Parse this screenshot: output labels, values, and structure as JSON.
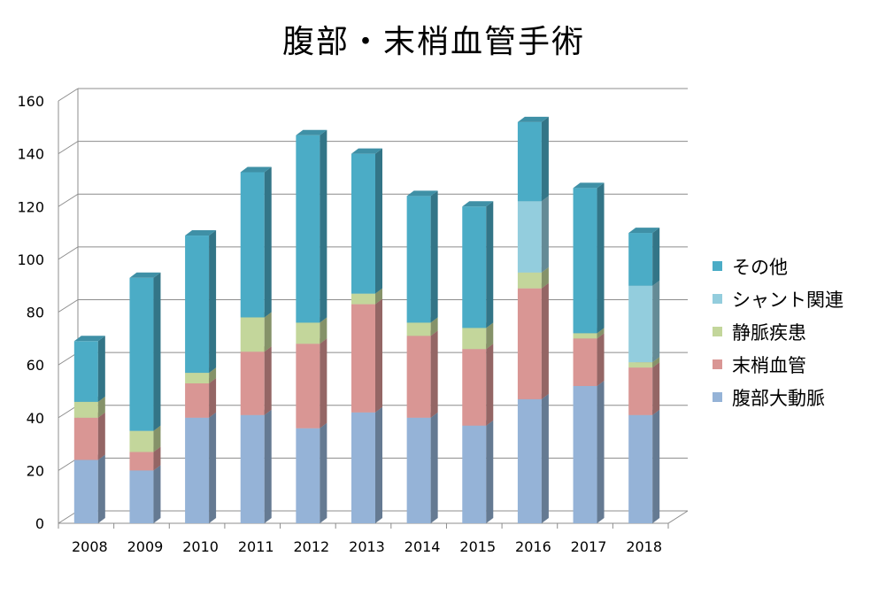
{
  "chart_data": {
    "type": "bar",
    "stacked": true,
    "three_d": true,
    "title": "腹部・末梢血管手術",
    "xlabel": "",
    "ylabel": "",
    "categories": [
      "2008",
      "2009",
      "2010",
      "2011",
      "2012",
      "2013",
      "2014",
      "2015",
      "2016",
      "2017",
      "2018"
    ],
    "ylim": [
      0,
      160
    ],
    "yticks": [
      0,
      20,
      40,
      60,
      80,
      100,
      120,
      140,
      160
    ],
    "grid": true,
    "legend_position": "right",
    "series": [
      {
        "name": "腹部大動脈",
        "color": "#95B3D7",
        "values": [
          24,
          20,
          40,
          41,
          36,
          42,
          40,
          37,
          47,
          52,
          41
        ]
      },
      {
        "name": "末梢血管",
        "color": "#D99694",
        "values": [
          16,
          7,
          13,
          24,
          32,
          41,
          31,
          29,
          42,
          18,
          18
        ]
      },
      {
        "name": "静脈疾患",
        "color": "#C3D69B",
        "values": [
          6,
          8,
          4,
          13,
          8,
          4,
          5,
          8,
          6,
          2,
          2
        ]
      },
      {
        "name": "シャント関連",
        "color": "#93CDDD",
        "values": [
          0,
          0,
          0,
          0,
          0,
          0,
          0,
          0,
          27,
          0,
          29
        ]
      },
      {
        "name": "その他",
        "color": "#4BACC6",
        "values": [
          23,
          58,
          52,
          55,
          71,
          53,
          48,
          46,
          30,
          55,
          20
        ]
      }
    ]
  }
}
